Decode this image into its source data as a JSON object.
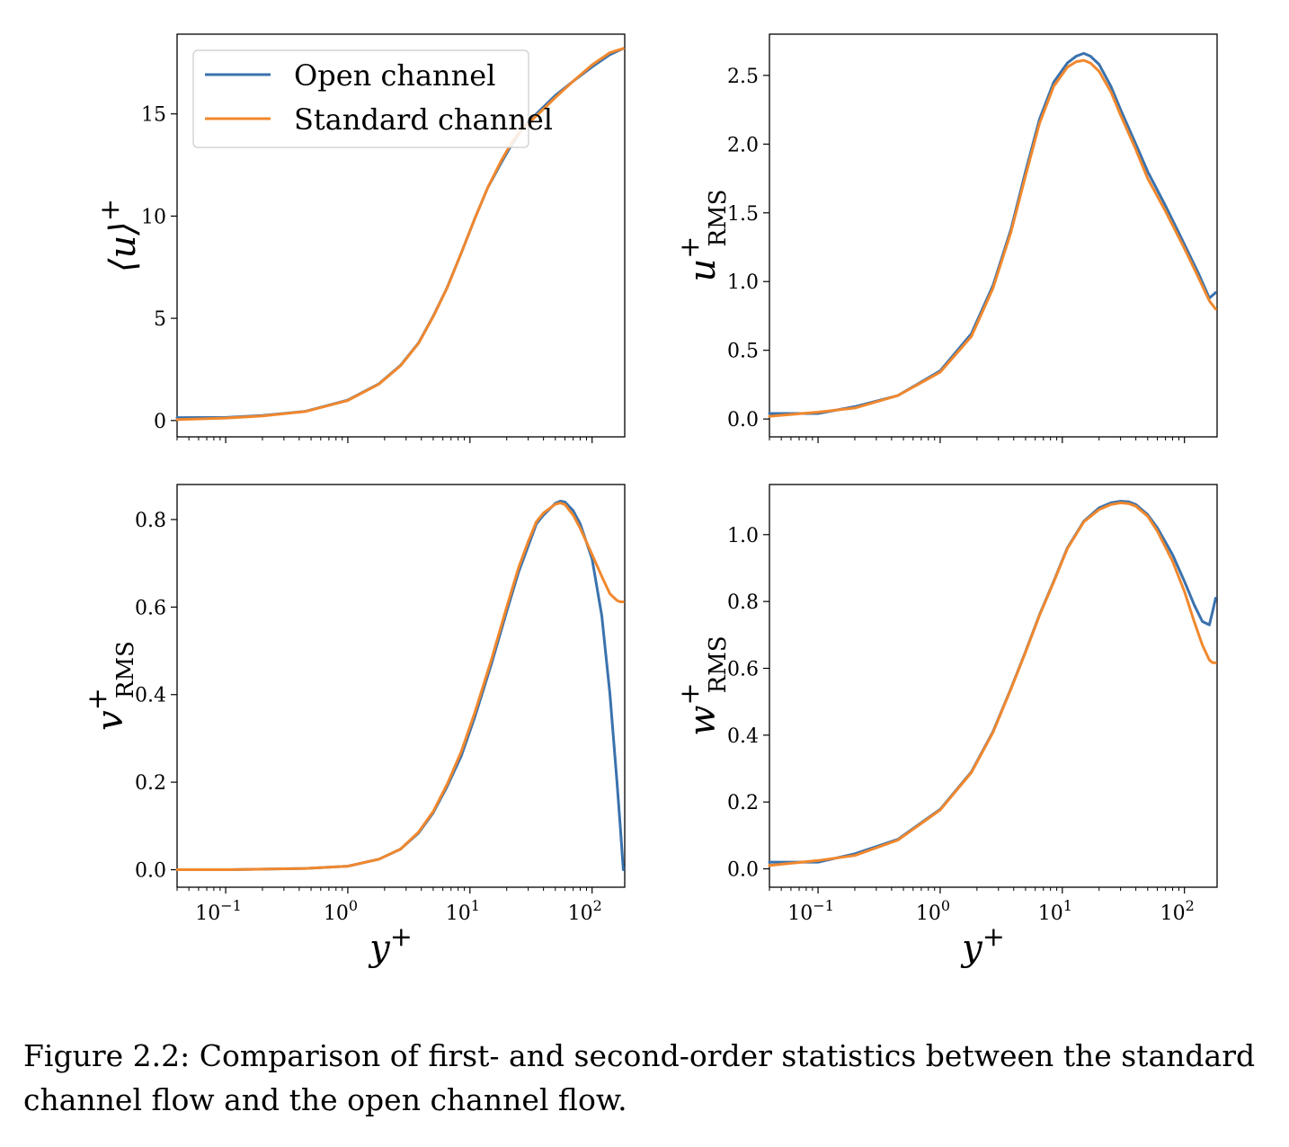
{
  "colors": {
    "open": "#3a72ad",
    "standard": "#f0882e"
  },
  "legend": [
    "Open channel",
    "Standard channel"
  ],
  "caption": {
    "line1": "Figure 2.2: Comparison of first- and second-order statistics between the standard",
    "line2": "channel flow and the open channel flow."
  },
  "chart_data": [
    {
      "type": "line",
      "ylabel": "⟨u⟩+",
      "xscale": "log",
      "xlim": [
        0.04,
        185
      ],
      "ylim": [
        -0.8,
        18.9
      ],
      "yticks": [
        0,
        5,
        10,
        15
      ],
      "ytick_labels": [
        "0",
        "5",
        "10",
        "15"
      ],
      "xticks": [
        0.1,
        1,
        10,
        100
      ],
      "xtick_labels": [],
      "legend": "top-left",
      "series": [
        {
          "name": "Open channel",
          "x": [
            0.04,
            0.1,
            0.2,
            0.45,
            1.0,
            1.8,
            2.7,
            3.8,
            5.0,
            6.5,
            8.5,
            11,
            14,
            18,
            22,
            27,
            35,
            50,
            70,
            100,
            140,
            180
          ],
          "y": [
            0.14,
            0.15,
            0.24,
            0.45,
            1.0,
            1.8,
            2.7,
            3.8,
            5.1,
            6.5,
            8.2,
            9.9,
            11.4,
            12.6,
            13.5,
            14.3,
            15.0,
            15.9,
            16.6,
            17.3,
            17.9,
            18.2
          ]
        },
        {
          "name": "Standard channel",
          "x": [
            0.04,
            0.1,
            0.2,
            0.45,
            1.0,
            1.8,
            2.7,
            3.8,
            5.0,
            6.5,
            8.5,
            11,
            14,
            18,
            22,
            27,
            35,
            50,
            70,
            100,
            140,
            180
          ],
          "y": [
            0.05,
            0.12,
            0.22,
            0.44,
            0.98,
            1.78,
            2.68,
            3.78,
            5.08,
            6.48,
            8.2,
            9.9,
            11.4,
            12.7,
            13.6,
            14.3,
            14.9,
            15.8,
            16.6,
            17.4,
            18.0,
            18.2
          ]
        }
      ]
    },
    {
      "type": "line",
      "ylabel": "u+RMS",
      "xscale": "log",
      "xlim": [
        0.04,
        185
      ],
      "ylim": [
        -0.13,
        2.8
      ],
      "yticks": [
        0.0,
        0.5,
        1.0,
        1.5,
        2.0,
        2.5
      ],
      "ytick_labels": [
        "0.0",
        "0.5",
        "1.0",
        "1.5",
        "2.0",
        "2.5"
      ],
      "xticks": [
        0.1,
        1,
        10,
        100
      ],
      "xtick_labels": [],
      "series": [
        {
          "name": "Open channel",
          "x": [
            0.04,
            0.1,
            0.2,
            0.45,
            1.0,
            1.8,
            2.7,
            3.8,
            5.0,
            6.5,
            8.5,
            11,
            13,
            15,
            17,
            20,
            25,
            30,
            40,
            50,
            70,
            100,
            130,
            160,
            180
          ],
          "y": [
            0.04,
            0.04,
            0.09,
            0.17,
            0.35,
            0.62,
            0.97,
            1.38,
            1.8,
            2.18,
            2.45,
            2.59,
            2.64,
            2.66,
            2.64,
            2.58,
            2.42,
            2.25,
            2.0,
            1.8,
            1.55,
            1.27,
            1.06,
            0.88,
            0.92
          ]
        },
        {
          "name": "Standard channel",
          "x": [
            0.04,
            0.1,
            0.2,
            0.45,
            1.0,
            1.8,
            2.7,
            3.8,
            5.0,
            6.5,
            8.5,
            11,
            13,
            15,
            17,
            20,
            25,
            30,
            40,
            50,
            70,
            100,
            130,
            160,
            180
          ],
          "y": [
            0.02,
            0.05,
            0.08,
            0.17,
            0.34,
            0.6,
            0.95,
            1.36,
            1.77,
            2.15,
            2.42,
            2.56,
            2.6,
            2.61,
            2.59,
            2.53,
            2.38,
            2.21,
            1.96,
            1.75,
            1.51,
            1.24,
            1.03,
            0.86,
            0.8
          ]
        }
      ]
    },
    {
      "type": "line",
      "ylabel": "v+RMS",
      "xlabel": "y+",
      "xscale": "log",
      "xlim": [
        0.04,
        185
      ],
      "ylim": [
        -0.04,
        0.88
      ],
      "yticks": [
        0.0,
        0.2,
        0.4,
        0.6,
        0.8
      ],
      "ytick_labels": [
        "0.0",
        "0.2",
        "0.4",
        "0.6",
        "0.8"
      ],
      "xticks": [
        0.1,
        1,
        10,
        100
      ],
      "xtick_labels": [
        "10−1",
        "100",
        "101",
        "102"
      ],
      "series": [
        {
          "name": "Open channel",
          "x": [
            0.04,
            0.1,
            0.45,
            1.0,
            1.8,
            2.7,
            3.8,
            5.0,
            6.5,
            8.5,
            11,
            15,
            20,
            25,
            30,
            35,
            40,
            50,
            55,
            60,
            70,
            80,
            100,
            120,
            140,
            160,
            170,
            180
          ],
          "y": [
            0.0,
            0.0,
            0.003,
            0.008,
            0.024,
            0.047,
            0.084,
            0.13,
            0.19,
            0.26,
            0.35,
            0.47,
            0.59,
            0.68,
            0.74,
            0.79,
            0.81,
            0.837,
            0.842,
            0.84,
            0.82,
            0.79,
            0.71,
            0.58,
            0.4,
            0.2,
            0.1,
            0.0
          ]
        },
        {
          "name": "Standard channel",
          "x": [
            0.04,
            0.1,
            0.45,
            1.0,
            1.8,
            2.7,
            3.8,
            5.0,
            6.5,
            8.5,
            11,
            15,
            20,
            25,
            30,
            35,
            40,
            50,
            55,
            60,
            70,
            80,
            100,
            120,
            140,
            160,
            170,
            180
          ],
          "y": [
            0.0,
            0.0,
            0.003,
            0.008,
            0.024,
            0.047,
            0.086,
            0.133,
            0.195,
            0.27,
            0.36,
            0.48,
            0.6,
            0.69,
            0.75,
            0.795,
            0.815,
            0.835,
            0.838,
            0.834,
            0.81,
            0.78,
            0.72,
            0.67,
            0.63,
            0.615,
            0.612,
            0.612
          ]
        }
      ]
    },
    {
      "type": "line",
      "ylabel": "w+RMS",
      "xlabel": "y+",
      "xscale": "log",
      "xlim": [
        0.04,
        185
      ],
      "ylim": [
        -0.055,
        1.15
      ],
      "yticks": [
        0.0,
        0.2,
        0.4,
        0.6,
        0.8,
        1.0
      ],
      "ytick_labels": [
        "0.0",
        "0.2",
        "0.4",
        "0.6",
        "0.8",
        "1.0"
      ],
      "xticks": [
        0.1,
        1,
        10,
        100
      ],
      "xtick_labels": [
        "10−1",
        "100",
        "101",
        "102"
      ],
      "series": [
        {
          "name": "Open channel",
          "x": [
            0.04,
            0.1,
            0.2,
            0.45,
            1.0,
            1.8,
            2.7,
            3.8,
            5.0,
            6.5,
            8.5,
            11,
            15,
            20,
            25,
            30,
            35,
            40,
            50,
            60,
            80,
            100,
            120,
            140,
            160,
            170,
            180
          ],
          "y": [
            0.02,
            0.02,
            0.045,
            0.088,
            0.178,
            0.29,
            0.41,
            0.54,
            0.65,
            0.76,
            0.86,
            0.96,
            1.04,
            1.08,
            1.095,
            1.1,
            1.098,
            1.09,
            1.06,
            1.02,
            0.94,
            0.86,
            0.79,
            0.74,
            0.73,
            0.77,
            0.81
          ]
        },
        {
          "name": "Standard channel",
          "x": [
            0.04,
            0.1,
            0.2,
            0.45,
            1.0,
            1.8,
            2.7,
            3.8,
            5.0,
            6.5,
            8.5,
            11,
            15,
            20,
            25,
            30,
            35,
            40,
            50,
            60,
            80,
            100,
            120,
            140,
            160,
            170,
            180
          ],
          "y": [
            0.01,
            0.025,
            0.04,
            0.086,
            0.176,
            0.288,
            0.408,
            0.538,
            0.648,
            0.758,
            0.858,
            0.958,
            1.038,
            1.075,
            1.09,
            1.095,
            1.093,
            1.085,
            1.055,
            1.01,
            0.92,
            0.83,
            0.74,
            0.67,
            0.625,
            0.617,
            0.617
          ]
        }
      ]
    }
  ]
}
